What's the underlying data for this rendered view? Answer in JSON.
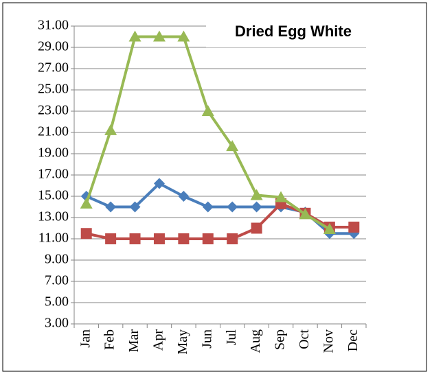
{
  "chart_data": {
    "type": "line",
    "title": "Dried Egg White",
    "categories": [
      "Jan",
      "Feb",
      "Mar",
      "Apr",
      "May",
      "Jun",
      "Jul",
      "Aug",
      "Sep",
      "Oct",
      "Nov",
      "Dec"
    ],
    "series": [
      {
        "color": "#4a7ebb",
        "marker": "diamond",
        "values": [
          15.0,
          14.0,
          14.0,
          16.2,
          15.0,
          14.0,
          14.0,
          14.0,
          14.0,
          13.5,
          11.5,
          11.5
        ]
      },
      {
        "color": "#be4b48",
        "marker": "square",
        "values": [
          11.5,
          11.0,
          11.0,
          11.0,
          11.0,
          11.0,
          11.0,
          12.0,
          14.3,
          13.4,
          12.1,
          12.1
        ]
      },
      {
        "color": "#98b954",
        "marker": "triangle",
        "values": [
          14.3,
          21.2,
          30.0,
          30.0,
          30.0,
          23.0,
          19.7,
          15.1,
          14.9,
          13.3,
          11.9,
          null
        ]
      }
    ],
    "ylim": [
      3,
      31
    ],
    "yticks": [
      {
        "value": 3,
        "label": "3.00"
      },
      {
        "value": 5,
        "label": "5.00"
      },
      {
        "value": 7,
        "label": "7.00"
      },
      {
        "value": 9,
        "label": "9.00"
      },
      {
        "value": 11,
        "label": "11.00"
      },
      {
        "value": 13,
        "label": "13.00"
      },
      {
        "value": 15,
        "label": "15.00"
      },
      {
        "value": 17,
        "label": "17.00"
      },
      {
        "value": 19,
        "label": "19.00"
      },
      {
        "value": 21,
        "label": "21.00"
      },
      {
        "value": 23,
        "label": "23.00"
      },
      {
        "value": 25,
        "label": "25.00"
      },
      {
        "value": 27,
        "label": "27.00"
      },
      {
        "value": 29,
        "label": "29.00"
      },
      {
        "value": 31,
        "label": "31.00"
      }
    ],
    "grid": true
  }
}
